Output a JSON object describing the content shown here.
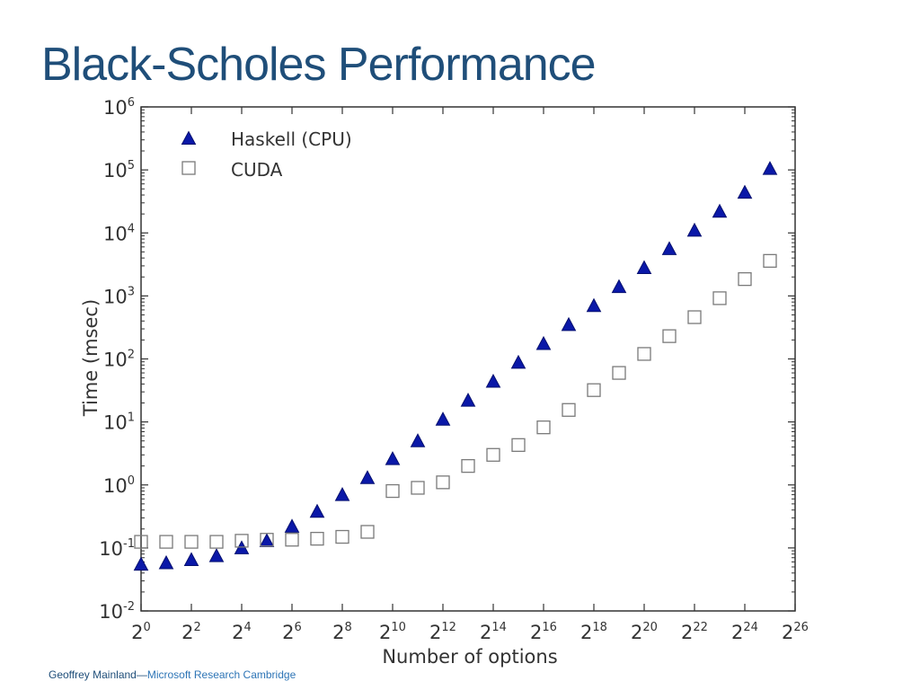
{
  "slide": {
    "title": "Black-Scholes Performance",
    "footer_author": "Geoffrey Mainland",
    "footer_separator": "—",
    "footer_org": "Microsoft Research Cambridge"
  },
  "colors": {
    "title": "#1f4e79",
    "haskell_marker": "#0a18a8",
    "cuda_marker": "#7a7a7a",
    "axis": "#333333"
  },
  "chart_data": {
    "type": "scatter",
    "xlabel": "Number of options",
    "ylabel": "Time (msec)",
    "x_scale": "log2",
    "y_scale": "log10",
    "xlim": [
      1,
      67108864
    ],
    "ylim": [
      0.01,
      1000000
    ],
    "x_tick_labels": [
      {
        "base": "2",
        "exp": "0"
      },
      {
        "base": "2",
        "exp": "2"
      },
      {
        "base": "2",
        "exp": "4"
      },
      {
        "base": "2",
        "exp": "6"
      },
      {
        "base": "2",
        "exp": "8"
      },
      {
        "base": "2",
        "exp": "10"
      },
      {
        "base": "2",
        "exp": "12"
      },
      {
        "base": "2",
        "exp": "14"
      },
      {
        "base": "2",
        "exp": "16"
      },
      {
        "base": "2",
        "exp": "18"
      },
      {
        "base": "2",
        "exp": "20"
      },
      {
        "base": "2",
        "exp": "22"
      },
      {
        "base": "2",
        "exp": "24"
      },
      {
        "base": "2",
        "exp": "26"
      }
    ],
    "y_tick_labels": [
      {
        "base": "10",
        "exp": "-2"
      },
      {
        "base": "10",
        "exp": "-1"
      },
      {
        "base": "10",
        "exp": "0"
      },
      {
        "base": "10",
        "exp": "1"
      },
      {
        "base": "10",
        "exp": "2"
      },
      {
        "base": "10",
        "exp": "3"
      },
      {
        "base": "10",
        "exp": "4"
      },
      {
        "base": "10",
        "exp": "5"
      },
      {
        "base": "10",
        "exp": "6"
      }
    ],
    "grid": false,
    "legend_position": "top-left",
    "x": [
      1,
      2,
      4,
      8,
      16,
      32,
      64,
      128,
      256,
      512,
      1024,
      2048,
      4096,
      8192,
      16384,
      32768,
      65536,
      131072,
      262144,
      524288,
      1048576,
      2097152,
      4194304,
      8388608,
      16777216,
      33554432
    ],
    "series": [
      {
        "name": "Haskell (CPU)",
        "marker": "triangle",
        "values": [
          0.055,
          0.058,
          0.065,
          0.075,
          0.1,
          0.13,
          0.22,
          0.38,
          0.7,
          1.3,
          2.6,
          5.0,
          11,
          22,
          44,
          88,
          175,
          350,
          700,
          1400,
          2800,
          5600,
          11000,
          22000,
          44000,
          105000
        ]
      },
      {
        "name": "CUDA",
        "marker": "square-open",
        "values": [
          0.125,
          0.125,
          0.125,
          0.125,
          0.13,
          0.135,
          0.135,
          0.14,
          0.15,
          0.18,
          0.8,
          0.9,
          1.1,
          2.0,
          3.0,
          4.3,
          8.2,
          15.5,
          32,
          60,
          120,
          230,
          460,
          920,
          1850,
          3600
        ]
      }
    ]
  }
}
